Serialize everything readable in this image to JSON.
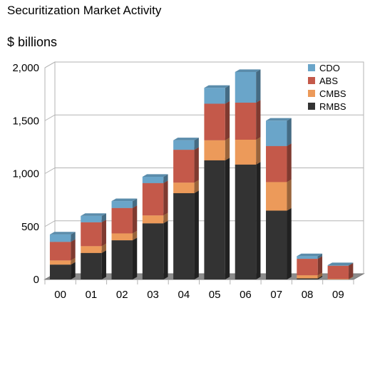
{
  "chart_data": {
    "type": "bar",
    "stacked": true,
    "three_d": true,
    "title": "Securitization Market Activity",
    "unit_label": "$ billions",
    "categories": [
      "00",
      "01",
      "02",
      "03",
      "04",
      "05",
      "06",
      "07",
      "08",
      "09"
    ],
    "ylim": [
      0,
      2000
    ],
    "yticks": [
      0,
      500,
      1000,
      1500,
      2000
    ],
    "ytick_labels": [
      "0",
      "500",
      "1,000",
      "1,500",
      "2,000"
    ],
    "grid": true,
    "legend_position": "top-right",
    "series": [
      {
        "name": "RMBS",
        "color": "#333333",
        "values": [
          140,
          250,
          370,
          530,
          815,
          1125,
          1085,
          650,
          10,
          0
        ]
      },
      {
        "name": "CMBS",
        "color": "#ec9a5a",
        "values": [
          40,
          65,
          65,
          75,
          100,
          190,
          235,
          270,
          30,
          5
        ]
      },
      {
        "name": "ABS",
        "color": "#c4594a",
        "values": [
          175,
          225,
          240,
          305,
          310,
          345,
          350,
          340,
          155,
          125
        ]
      },
      {
        "name": "CDO",
        "color": "#6aa5c9",
        "values": [
          70,
          60,
          65,
          60,
          90,
          150,
          290,
          240,
          25,
          5
        ]
      }
    ]
  }
}
